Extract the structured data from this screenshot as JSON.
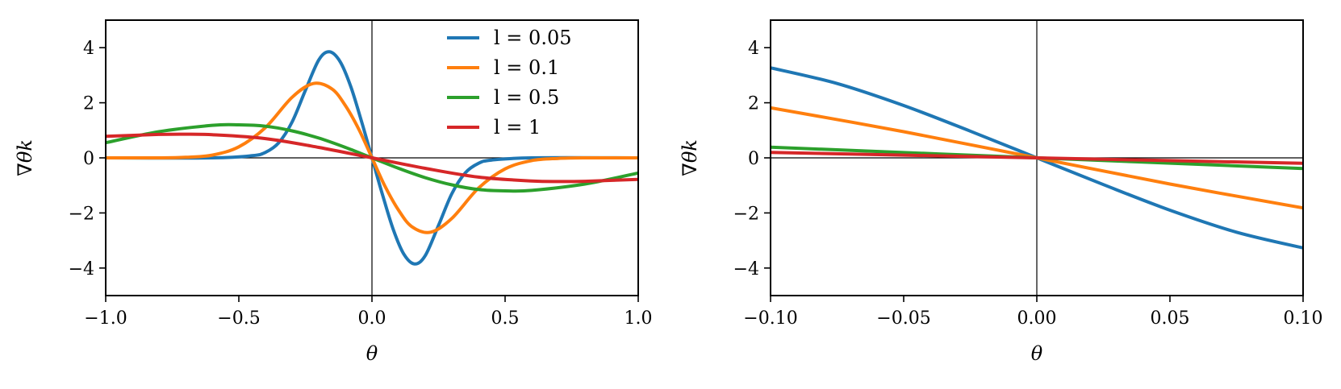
{
  "chart_data": [
    {
      "type": "line",
      "title": "",
      "xlabel": "θ",
      "ylabel": "∇θk",
      "xlim": [
        -1.0,
        1.0
      ],
      "ylim": [
        -5,
        5
      ],
      "xticks": [
        "−1.0",
        "−0.5",
        "0.0",
        "0.5",
        "1.0"
      ],
      "yticks": [
        "4",
        "2",
        "0",
        "−2",
        "−4"
      ],
      "reference_lines": {
        "horizontal_y": 0,
        "vertical_x": 0
      },
      "legend_position": "top-right",
      "series": [
        {
          "name": "l = 0.05",
          "color": "#1f77b4",
          "x": [
            -1.0,
            -0.6,
            -0.45,
            -0.4,
            -0.35,
            -0.3,
            -0.25,
            -0.2,
            -0.16,
            -0.12,
            -0.08,
            -0.04,
            0.0,
            0.04,
            0.08,
            0.12,
            0.16,
            0.2,
            0.25,
            0.3,
            0.35,
            0.4,
            0.45,
            0.6,
            1.0
          ],
          "y": [
            0.0,
            0.0,
            0.08,
            0.2,
            0.55,
            1.3,
            2.45,
            3.55,
            3.85,
            3.5,
            2.6,
            1.35,
            0.0,
            -1.35,
            -2.6,
            -3.5,
            -3.85,
            -3.55,
            -2.45,
            -1.3,
            -0.55,
            -0.2,
            -0.08,
            0.0,
            0.0
          ]
        },
        {
          "name": "l = 0.1",
          "color": "#ff7f0e",
          "x": [
            -1.0,
            -0.8,
            -0.7,
            -0.6,
            -0.5,
            -0.4,
            -0.3,
            -0.22,
            -0.15,
            -0.1,
            -0.05,
            0.0,
            0.05,
            0.1,
            0.15,
            0.22,
            0.3,
            0.4,
            0.5,
            0.6,
            0.7,
            0.8,
            1.0
          ],
          "y": [
            0.0,
            0.0,
            0.02,
            0.1,
            0.4,
            1.1,
            2.2,
            2.7,
            2.5,
            1.9,
            1.05,
            0.0,
            -1.05,
            -1.9,
            -2.5,
            -2.7,
            -2.2,
            -1.1,
            -0.4,
            -0.1,
            -0.02,
            0.0,
            0.0
          ]
        },
        {
          "name": "l = 0.5",
          "color": "#2ca02c",
          "x": [
            -1.0,
            -0.8,
            -0.6,
            -0.5,
            -0.4,
            -0.3,
            -0.2,
            -0.1,
            0.0,
            0.1,
            0.2,
            0.3,
            0.4,
            0.5,
            0.6,
            0.8,
            1.0
          ],
          "y": [
            0.55,
            0.95,
            1.18,
            1.2,
            1.15,
            0.98,
            0.72,
            0.38,
            0.0,
            -0.38,
            -0.72,
            -0.98,
            -1.15,
            -1.2,
            -1.18,
            -0.95,
            -0.55
          ]
        },
        {
          "name": "l = 1",
          "color": "#d62728",
          "x": [
            -1.0,
            -0.8,
            -0.7,
            -0.6,
            -0.4,
            -0.2,
            0.0,
            0.2,
            0.4,
            0.6,
            0.7,
            0.8,
            1.0
          ],
          "y": [
            0.78,
            0.85,
            0.86,
            0.84,
            0.7,
            0.38,
            0.0,
            -0.38,
            -0.7,
            -0.84,
            -0.86,
            -0.85,
            -0.78
          ]
        }
      ]
    },
    {
      "type": "line",
      "title": "",
      "xlabel": "θ",
      "ylabel": "∇θk",
      "xlim": [
        -0.1,
        0.1
      ],
      "ylim": [
        -5,
        5
      ],
      "xticks": [
        "−0.10",
        "−0.05",
        "0.00",
        "0.05",
        "0.10"
      ],
      "yticks": [
        "4",
        "2",
        "0",
        "−2",
        "−4"
      ],
      "reference_lines": {
        "horizontal_y": 0,
        "vertical_x": 0
      },
      "series": [
        {
          "color": "#1f77b4",
          "x": [
            -0.1,
            -0.075,
            -0.05,
            -0.025,
            0.0,
            0.025,
            0.05,
            0.075,
            0.1
          ],
          "y": [
            3.27,
            2.7,
            1.9,
            0.97,
            0.0,
            -0.97,
            -1.9,
            -2.7,
            -3.27
          ]
        },
        {
          "color": "#ff7f0e",
          "x": [
            -0.1,
            -0.05,
            0.0,
            0.05,
            0.1
          ],
          "y": [
            1.82,
            0.95,
            0.0,
            -0.95,
            -1.82
          ]
        },
        {
          "color": "#2ca02c",
          "x": [
            -0.1,
            0.0,
            0.1
          ],
          "y": [
            0.39,
            0.0,
            -0.39
          ]
        },
        {
          "color": "#d62728",
          "x": [
            -0.1,
            0.0,
            0.1
          ],
          "y": [
            0.2,
            0.0,
            -0.2
          ]
        }
      ]
    }
  ]
}
